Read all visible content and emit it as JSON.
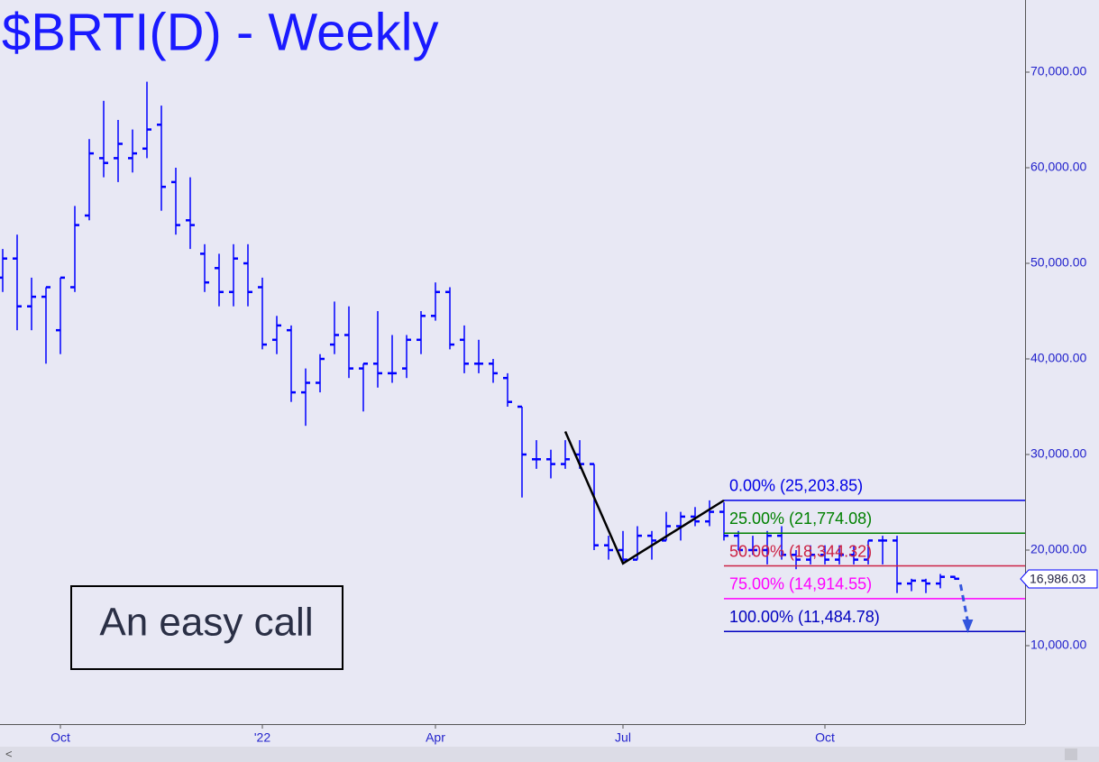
{
  "chart_data": {
    "type": "ohlc",
    "title": "$BRTI(D) - Weekly",
    "color": "#0000ff",
    "categories": [
      null,
      null,
      null,
      null,
      "Oct",
      null,
      null,
      null,
      null,
      null,
      null,
      null,
      null,
      null,
      null,
      null,
      null,
      null,
      "'22",
      null,
      null,
      null,
      null,
      null,
      null,
      null,
      null,
      null,
      null,
      null,
      "Apr",
      null,
      null,
      null,
      null,
      null,
      null,
      null,
      null,
      null,
      null,
      null,
      null,
      "Jul",
      null,
      null,
      null,
      null,
      null,
      null,
      null,
      null,
      null,
      null,
      null,
      null,
      null,
      "Oct",
      null,
      null,
      null,
      null,
      null,
      null,
      null,
      null,
      null
    ],
    "open": [
      48500,
      50500,
      45500,
      46500,
      43000,
      47500,
      55000,
      61000,
      61000,
      61000,
      62000,
      64500,
      58500,
      54500,
      51000,
      49500,
      47000,
      50000,
      47500,
      42000,
      43000,
      36500,
      37500,
      41500,
      42500,
      39000,
      39500,
      38500,
      39000,
      42000,
      44500,
      47000,
      42000,
      39500,
      39500,
      38000,
      35000,
      29500,
      29500,
      29000,
      30000,
      29000,
      20500,
      20000,
      19000,
      21500,
      21000,
      22500,
      23500,
      23000,
      24000,
      21500,
      20000,
      20000,
      21500,
      19500,
      19000,
      19500,
      19000,
      19500,
      19000,
      21000,
      21000,
      16500,
      16800,
      16500,
      17200
    ],
    "high": [
      51500,
      53000,
      48500,
      47500,
      48500,
      56000,
      63000,
      67000,
      65000,
      64000,
      69000,
      66500,
      60000,
      59000,
      52000,
      51000,
      52000,
      52000,
      48500,
      44500,
      43500,
      39000,
      40500,
      46000,
      45500,
      39500,
      45000,
      42500,
      42500,
      45000,
      48000,
      47500,
      43500,
      42000,
      40000,
      38500,
      35000,
      31500,
      30500,
      31500,
      31500,
      29000,
      21500,
      22000,
      22500,
      22000,
      24000,
      24000,
      24500,
      25200,
      25000,
      22000,
      21500,
      22000,
      22500,
      20000,
      20500,
      20500,
      20500,
      20500,
      21000,
      21500,
      21500,
      17000,
      17000,
      17500,
      17300
    ],
    "low": [
      47000,
      43000,
      43000,
      39500,
      40500,
      47000,
      54500,
      59000,
      58500,
      59500,
      61000,
      55500,
      53000,
      51500,
      47000,
      45500,
      45500,
      45500,
      41000,
      40500,
      35500,
      33000,
      36500,
      40500,
      38000,
      34500,
      37000,
      37500,
      38000,
      40500,
      44000,
      41000,
      38500,
      38500,
      37500,
      35000,
      25500,
      28500,
      27500,
      28500,
      28500,
      20000,
      19000,
      18500,
      19000,
      19000,
      21000,
      21000,
      22500,
      22500,
      21000,
      20000,
      19500,
      18500,
      19000,
      18000,
      18500,
      18500,
      18500,
      18500,
      18500,
      18500,
      15500,
      15700,
      15500,
      16000,
      16900
    ],
    "close": [
      50500,
      45500,
      46500,
      47500,
      48500,
      54000,
      61500,
      60500,
      62500,
      61500,
      64000,
      58000,
      54000,
      54000,
      48000,
      47000,
      50500,
      47000,
      41500,
      43500,
      36500,
      37500,
      40000,
      42500,
      39000,
      39500,
      38500,
      38500,
      42000,
      44500,
      47000,
      41500,
      39500,
      39500,
      38500,
      35500,
      30000,
      29500,
      29000,
      29500,
      29000,
      20500,
      20000,
      19000,
      21500,
      21000,
      22500,
      23500,
      23000,
      24000,
      21500,
      20000,
      20000,
      21500,
      19500,
      19000,
      19500,
      19000,
      19500,
      19000,
      21000,
      21000,
      16500,
      16800,
      16500,
      17200,
      17000
    ],
    "ylim": [
      1792,
      77547
    ],
    "yticks": [
      {
        "value": 10000,
        "label": "10,000.00"
      },
      {
        "value": 20000,
        "label": "20,000.00"
      },
      {
        "value": 30000,
        "label": "30,000.00"
      },
      {
        "value": 40000,
        "label": "40,000.00"
      },
      {
        "value": 50000,
        "label": "50,000.00"
      },
      {
        "value": 60000,
        "label": "60,000.00"
      },
      {
        "value": 70000,
        "label": "70,000.00"
      }
    ],
    "last_price": {
      "value": 16986.03,
      "label": "16,986.03"
    },
    "fib_levels": [
      {
        "label": "0.00% (25,203.85)",
        "value": 25203.85,
        "color": "#0000e6"
      },
      {
        "label": "25.00% (21,774.08)",
        "value": 21774.08,
        "color": "#008000"
      },
      {
        "label": "50.00% (18,344.32)",
        "value": 18344.32,
        "color": "#cc2244"
      },
      {
        "label": "75.00% (14,914.55)",
        "value": 14914.55,
        "color": "#ff00ff"
      },
      {
        "label": "100.00% (11,484.78)",
        "value": 11484.78,
        "color": "#0000c0"
      }
    ],
    "pattern_line": {
      "x": [
        39,
        43,
        50
      ],
      "values": [
        32400,
        18600,
        25200
      ],
      "color": "#000000"
    },
    "projection": {
      "x": [
        66.4,
        66.9
      ],
      "values": [
        16400,
        11600
      ],
      "color": "#3355dd"
    },
    "annotation": "An easy call"
  }
}
